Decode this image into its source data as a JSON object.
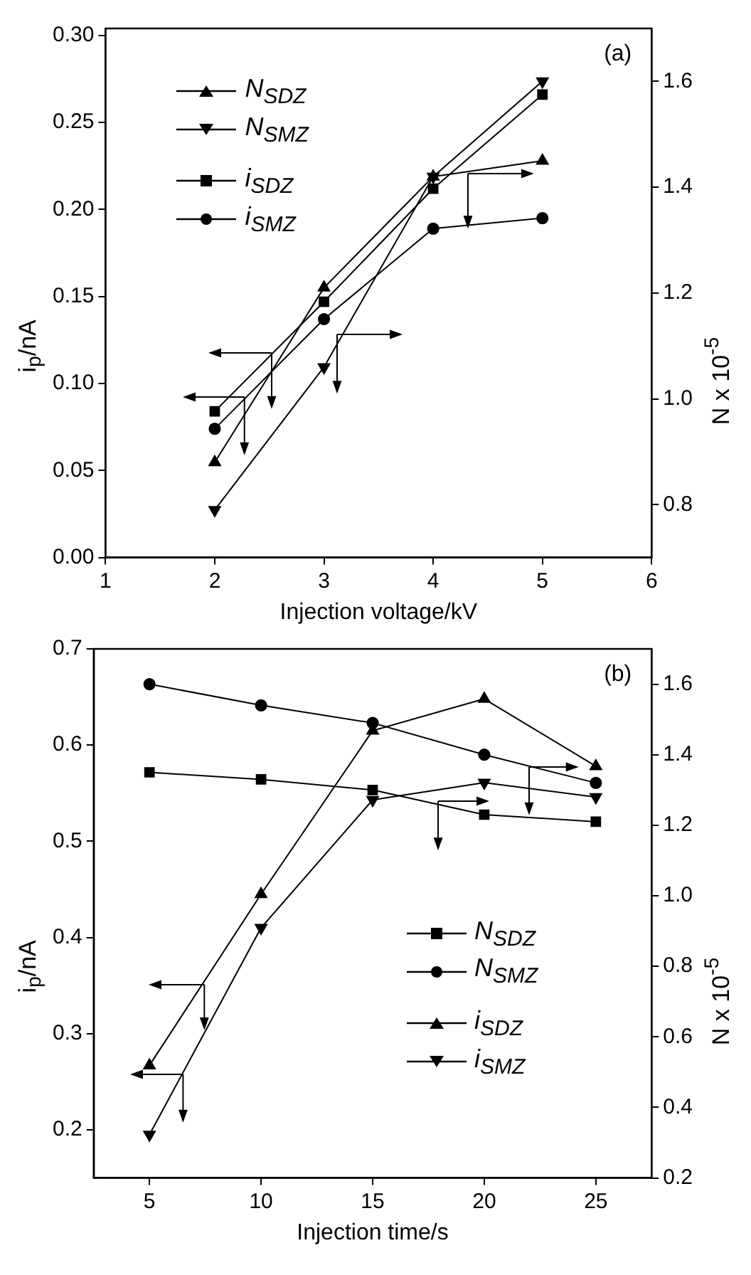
{
  "chart_data": [
    {
      "type": "line",
      "xlabel": "Injection voltage/kV",
      "ylabel": "i$_{p}$/nA",
      "y2label": "N x 10$^{-5}$",
      "x": [
        2,
        3,
        4,
        5
      ],
      "xlim": [
        1,
        6
      ],
      "xticks": [
        1,
        2,
        3,
        4,
        5,
        6
      ],
      "ylim": [
        0,
        0.304
      ],
      "yticks": [
        {
          "value": 0,
          "label": "0.00"
        },
        0.05,
        {
          "value": 0.1,
          "label": "0.10"
        },
        0.15,
        {
          "value": 0.2,
          "label": "0.20"
        },
        0.25,
        {
          "value": 0.3,
          "label": "0.30"
        }
      ],
      "y2lim": [
        0.7,
        1.7
      ],
      "y2ticks": [
        0.8,
        {
          "value": 1,
          "label": "1.0"
        },
        1.2,
        1.4,
        1.6
      ],
      "grid": false,
      "legend": "top left",
      "annotations": [
        "(a)"
      ],
      "series": [
        {
          "name": "N$_{SDZ}$",
          "color": "#000000",
          "marker": "triangle",
          "axis": "y2",
          "values": [
            0.88,
            1.21,
            1.42,
            1.45
          ]
        },
        {
          "name": "N$_{SMZ}$",
          "color": "#000000",
          "marker": "triangle-down",
          "axis": "y2",
          "values": [
            0.79,
            1.06,
            1.42,
            1.6
          ]
        },
        {
          "name": "i$_{SDZ}$",
          "color": "#000000",
          "marker": "square",
          "values": [
            0.084,
            0.147,
            0.212,
            0.266
          ]
        },
        {
          "name": "i$_{SMZ}$",
          "color": "#000000",
          "marker": "circle",
          "values": [
            0.074,
            0.137,
            0.189,
            0.195
          ]
        }
      ]
    },
    {
      "type": "line",
      "xlabel": "Injection time/s",
      "ylabel": "i$_{p}$/nA",
      "y2label": "N x 10$^{-5}$",
      "x": [
        5,
        10,
        15,
        20,
        25
      ],
      "xlim": [
        2.5,
        27.5
      ],
      "xticks": [
        5,
        10,
        15,
        20,
        25
      ],
      "ylim": [
        0.15,
        0.7
      ],
      "yticks": [
        0.2,
        0.3,
        0.4,
        0.5,
        0.6,
        0.7
      ],
      "y2lim": [
        0.2,
        1.7
      ],
      "y2ticks": [
        0.2,
        0.4,
        0.6,
        0.8,
        {
          "value": 1,
          "label": "1.0"
        },
        1.2,
        1.4,
        1.6
      ],
      "grid": false,
      "legend": "right",
      "annotations": [
        "(b)"
      ],
      "series": [
        {
          "name": "N$_{SDZ}$",
          "color": "#000000",
          "marker": "square",
          "axis": "y2",
          "values": [
            1.35,
            1.33,
            1.3,
            1.23,
            1.21
          ]
        },
        {
          "name": "N$_{SMZ}$",
          "color": "#000000",
          "marker": "circle",
          "axis": "y2",
          "values": [
            1.6,
            1.54,
            1.49,
            1.4,
            1.32
          ]
        },
        {
          "name": "i$_{SDZ}$",
          "color": "#000000",
          "marker": "triangle",
          "values": [
            0.267,
            0.445,
            0.615,
            0.648,
            0.578
          ]
        },
        {
          "name": "i$_{SMZ}$",
          "color": "#000000",
          "marker": "triangle-down",
          "values": [
            0.195,
            0.41,
            0.543,
            0.561,
            0.546
          ]
        }
      ]
    }
  ]
}
